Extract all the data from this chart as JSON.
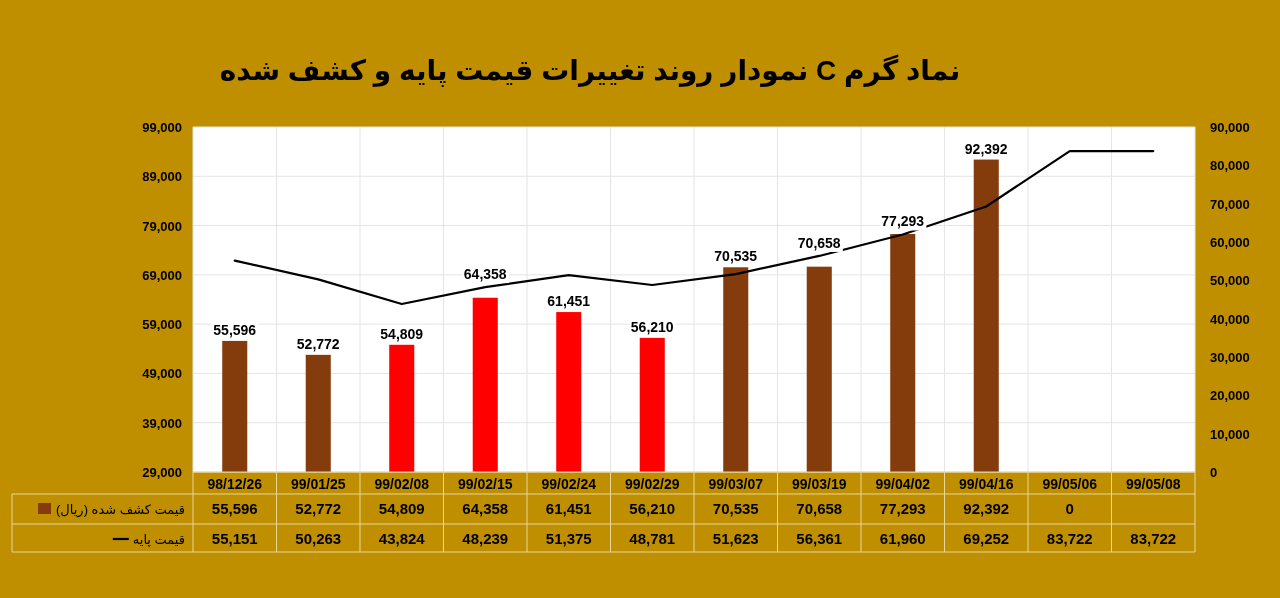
{
  "chart_data": {
    "type": "bar",
    "title": "نماد گرم  C     نمودار روند تغییرات قیمت پایه و کشف شده",
    "categories": [
      "98/12/26",
      "99/01/25",
      "99/02/08",
      "99/02/15",
      "99/02/24",
      "99/02/29",
      "99/03/07",
      "99/03/19",
      "99/04/02",
      "99/04/16",
      "99/05/06",
      "99/05/08"
    ],
    "series": [
      {
        "name": "قیمت کشف شده (ریال)",
        "color": "#843c0c",
        "colors": [
          "#843c0c",
          "#843c0c",
          "#ff0000",
          "#ff0000",
          "#ff0000",
          "#ff0000",
          "#843c0c",
          "#843c0c",
          "#843c0c",
          "#843c0c",
          "#843c0c",
          "#843c0c"
        ],
        "values": [
          55596,
          52772,
          54809,
          64358,
          61451,
          56210,
          70535,
          70658,
          77293,
          92392,
          null,
          null
        ],
        "value_labels": [
          "55,596",
          "52,772",
          "54,809",
          "64,358",
          "61,451",
          "56,210",
          "70,535",
          "70,658",
          "77,293",
          "92,392",
          "0",
          null
        ]
      },
      {
        "name": "قیمت پایه",
        "type": "line",
        "axis": "y2",
        "color": "#000000",
        "values": [
          55151,
          50263,
          43824,
          48239,
          51375,
          48781,
          51623,
          56361,
          61960,
          69252,
          83722,
          83722
        ],
        "value_labels": [
          "55,151",
          "50,263",
          "43,824",
          "48,239",
          "51,375",
          "48,781",
          "51,623",
          "56,361",
          "61,960",
          "69,252",
          "83,722",
          "83,722"
        ]
      }
    ],
    "ylim": [
      29000,
      99000
    ],
    "yticks": [
      {
        "value": 29000,
        "label": "29,000"
      },
      {
        "value": 39000,
        "label": "39,000"
      },
      {
        "value": 49000,
        "label": "49,000"
      },
      {
        "value": 59000,
        "label": "59,000"
      },
      {
        "value": 69000,
        "label": "69,000"
      },
      {
        "value": 79000,
        "label": "79,000"
      },
      {
        "value": 89000,
        "label": "89,000"
      },
      {
        "value": 99000,
        "label": "99,000"
      }
    ],
    "y2lim": [
      0,
      90000
    ],
    "y2ticks": [
      0,
      {
        "value": 10000,
        "label": "10,000"
      },
      {
        "value": 20000,
        "label": "20,000"
      },
      {
        "value": 30000,
        "label": "30,000"
      },
      {
        "value": 40000,
        "label": "40,000"
      },
      {
        "value": 50000,
        "label": "50,000"
      },
      {
        "value": 60000,
        "label": "60,000"
      },
      {
        "value": 70000,
        "label": "70,000"
      },
      {
        "value": 80000,
        "label": "80,000"
      },
      {
        "value": 90000,
        "label": "90,000"
      }
    ],
    "grid": true,
    "legend": "bottom left",
    "marker": "none",
    "line_style": "solid"
  }
}
